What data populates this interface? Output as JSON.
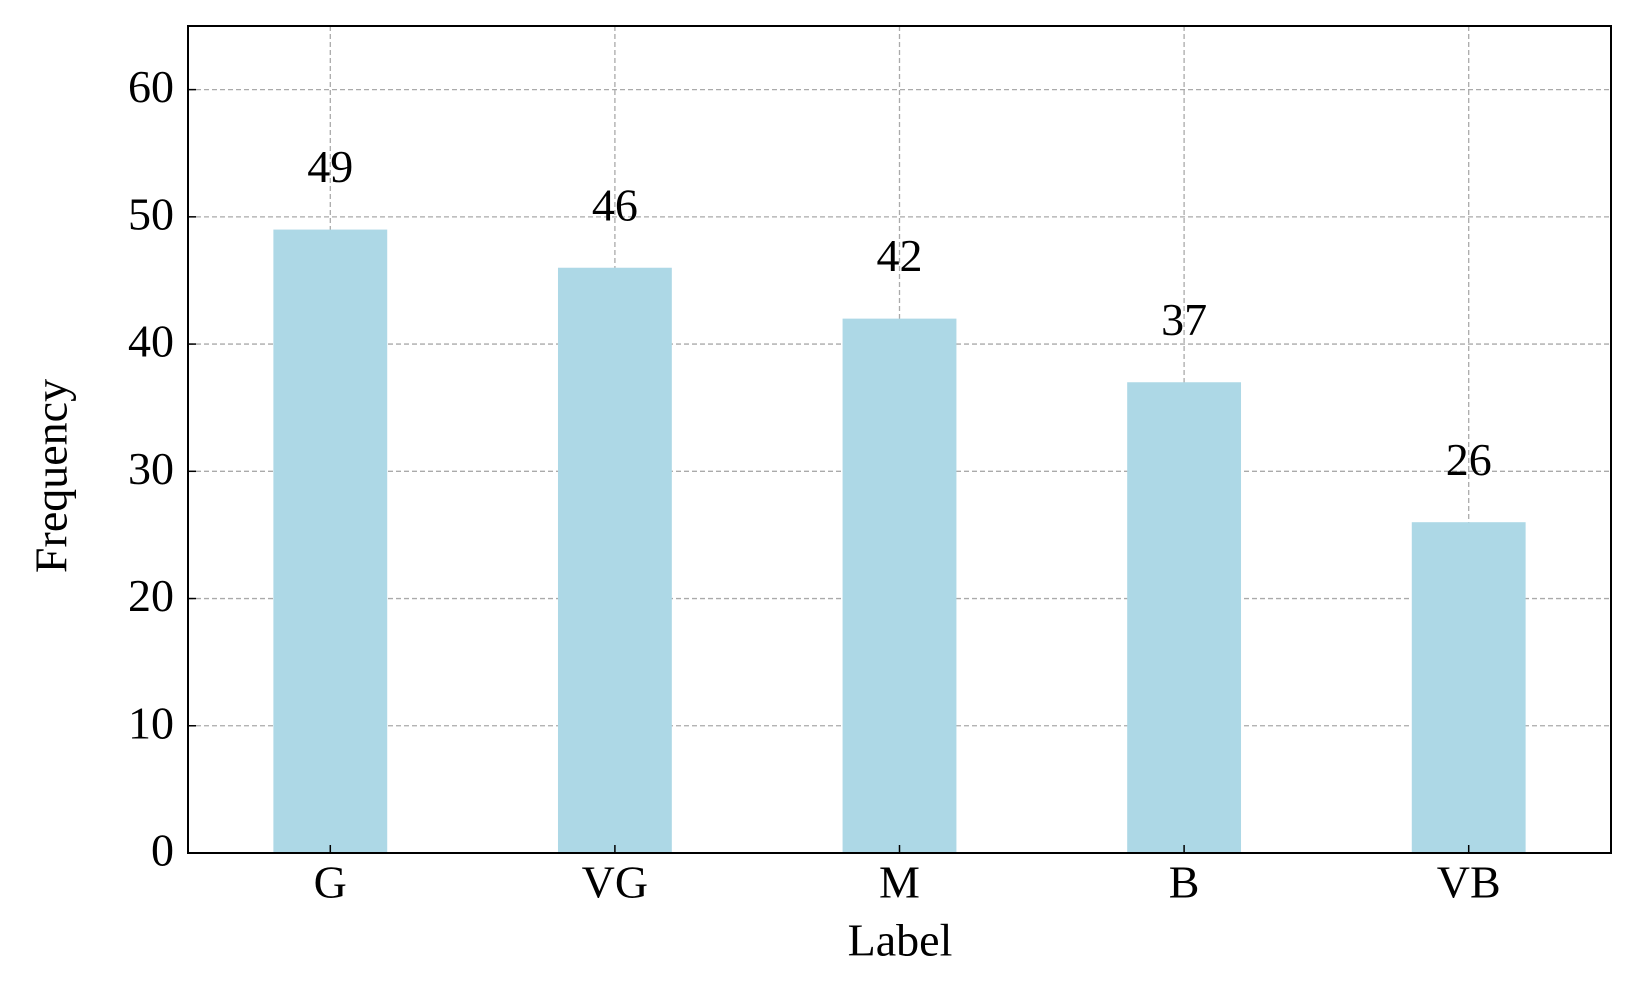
{
  "chart_data": {
    "type": "bar",
    "xlabel": "Label",
    "ylabel": "Frequency",
    "categories": [
      "G",
      "VG",
      "M",
      "B",
      "VB"
    ],
    "values": [
      49,
      46,
      42,
      37,
      26
    ],
    "color": "#add8e6",
    "ylim": [
      0,
      65
    ],
    "yticks": [
      0,
      10,
      20,
      30,
      40,
      50,
      60
    ],
    "grid": true
  }
}
